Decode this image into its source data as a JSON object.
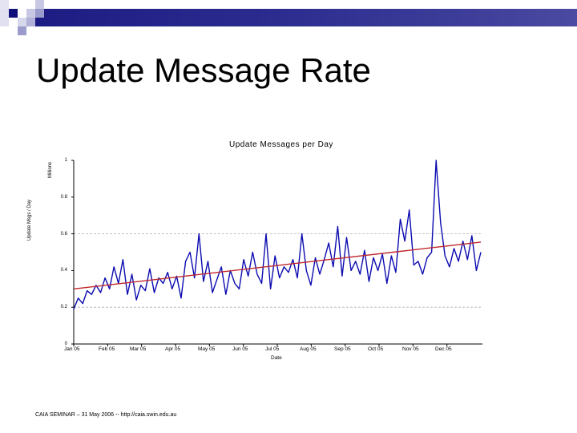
{
  "slide": {
    "title": "Update Message Rate",
    "footer": "CAIA SEMINAR – 31 May 2006 -- http://caia.swin.edu.au"
  },
  "chart_data": {
    "type": "line",
    "title": "Update Messages per Day",
    "xlabel": "Date",
    "ylabel": "Update Msgs / Day",
    "yunit": "Millions",
    "ylim": [
      0,
      1
    ],
    "yticks": [
      0,
      0.2,
      0.4,
      0.6,
      0.8,
      1
    ],
    "ytick_labels": [
      "0",
      "0.2",
      "0.4",
      "0.6",
      "0.8",
      "1"
    ],
    "xtick_labels": [
      "Jan 05",
      "Feb 05",
      "Mar 05",
      "Apr 05",
      "May 05",
      "Jun 05",
      "Jul 05",
      "Aug 05",
      "Sep 05",
      "Oct 05",
      "Nov 05",
      "Dec 05"
    ],
    "grid": {
      "horizontal_dashed_at": [
        0.2,
        0.6
      ]
    },
    "legend": "none",
    "series": [
      {
        "name": "Update messages per day (millions)",
        "color": "#0b0bb0",
        "x_day": [
          0,
          4,
          8,
          12,
          16,
          20,
          24,
          28,
          32,
          36,
          40,
          44,
          48,
          52,
          56,
          60,
          64,
          68,
          72,
          76,
          80,
          84,
          88,
          92,
          96,
          100,
          104,
          108,
          112,
          116,
          120,
          124,
          128,
          132,
          136,
          140,
          144,
          148,
          152,
          156,
          160,
          164,
          168,
          172,
          176,
          180,
          184,
          188,
          192,
          196,
          200,
          204,
          208,
          212,
          216,
          220,
          224,
          228,
          232,
          236,
          240,
          244,
          248,
          252,
          256,
          260,
          264,
          268,
          272,
          276,
          280,
          284,
          288,
          292,
          296,
          300,
          304,
          308,
          312,
          316,
          320,
          324,
          328,
          332,
          336,
          340,
          344,
          348,
          352,
          356,
          360,
          364
        ],
        "values": [
          0.19,
          0.25,
          0.22,
          0.29,
          0.27,
          0.32,
          0.28,
          0.36,
          0.3,
          0.42,
          0.33,
          0.46,
          0.27,
          0.38,
          0.24,
          0.32,
          0.29,
          0.41,
          0.28,
          0.36,
          0.33,
          0.39,
          0.3,
          0.37,
          0.25,
          0.45,
          0.5,
          0.36,
          0.6,
          0.34,
          0.45,
          0.28,
          0.35,
          0.42,
          0.27,
          0.4,
          0.33,
          0.3,
          0.46,
          0.37,
          0.5,
          0.38,
          0.33,
          0.6,
          0.3,
          0.48,
          0.36,
          0.42,
          0.39,
          0.46,
          0.36,
          0.6,
          0.4,
          0.32,
          0.47,
          0.38,
          0.46,
          0.55,
          0.42,
          0.64,
          0.37,
          0.58,
          0.4,
          0.45,
          0.38,
          0.51,
          0.34,
          0.47,
          0.4,
          0.49,
          0.33,
          0.48,
          0.39,
          0.68,
          0.56,
          0.73,
          0.43,
          0.45,
          0.38,
          0.47,
          0.5,
          1.0,
          0.66,
          0.48,
          0.42,
          0.52,
          0.45,
          0.56,
          0.46,
          0.59,
          0.4,
          0.5
        ]
      },
      {
        "name": "Linear trend",
        "color": "#c0282d",
        "x_day": [
          0,
          364
        ],
        "values": [
          0.3,
          0.555
        ]
      }
    ]
  },
  "decor": {
    "accent": "#1c1c84",
    "square_light": "#c8c8e4",
    "square_mid": "#9c9ccc",
    "square_dark": "#10107a"
  }
}
